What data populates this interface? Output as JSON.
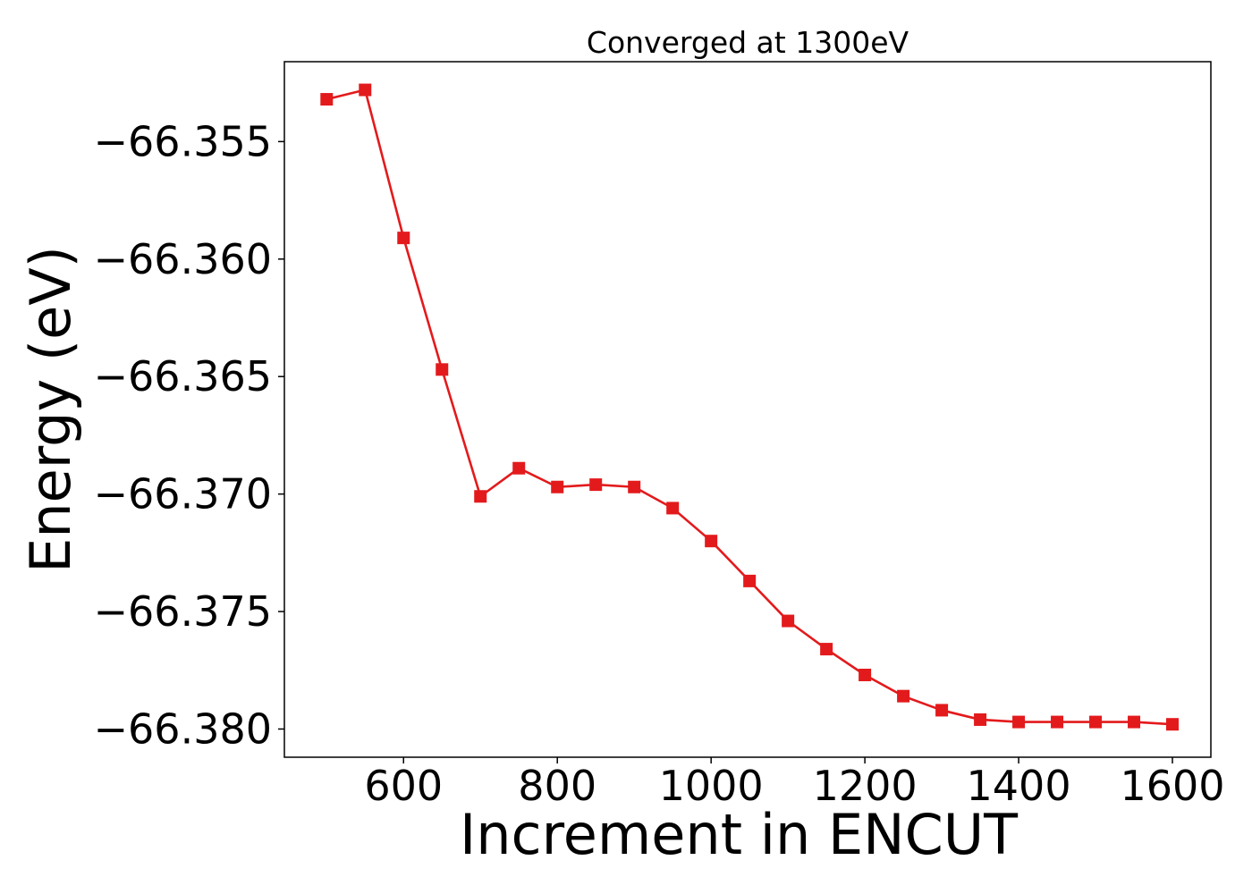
{
  "chart_data": {
    "type": "line",
    "title": "Converged at 1300eV",
    "xlabel": "Increment in ENCUT",
    "ylabel": "Energy (eV)",
    "xlim": [
      445,
      1650
    ],
    "ylim": [
      -66.3812,
      -66.3516
    ],
    "xticks": [
      600,
      800,
      1000,
      1200,
      1400,
      1600
    ],
    "xtick_labels": [
      "600",
      "800",
      "1000",
      "1200",
      "1400",
      "1600"
    ],
    "yticks": [
      -66.355,
      -66.36,
      -66.365,
      -66.37,
      -66.375,
      -66.38
    ],
    "ytick_labels": [
      "−66.355",
      "−66.360",
      "−66.365",
      "−66.370",
      "−66.375",
      "−66.380"
    ],
    "grid": false,
    "series": [
      {
        "color": "#e31a1c",
        "marker": "square",
        "x": [
          500,
          550,
          600,
          650,
          700,
          750,
          800,
          850,
          900,
          950,
          1000,
          1050,
          1100,
          1150,
          1200,
          1250,
          1300,
          1350,
          1400,
          1450,
          1500,
          1550,
          1600
        ],
        "y": [
          -66.3532,
          -66.3528,
          -66.3591,
          -66.3647,
          -66.3701,
          -66.3689,
          -66.3697,
          -66.3696,
          -66.3697,
          -66.3706,
          -66.372,
          -66.3737,
          -66.3754,
          -66.3766,
          -66.3777,
          -66.3786,
          -66.3792,
          -66.3796,
          -66.3797,
          -66.3797,
          -66.3797,
          -66.3797,
          -66.3798
        ]
      }
    ]
  }
}
